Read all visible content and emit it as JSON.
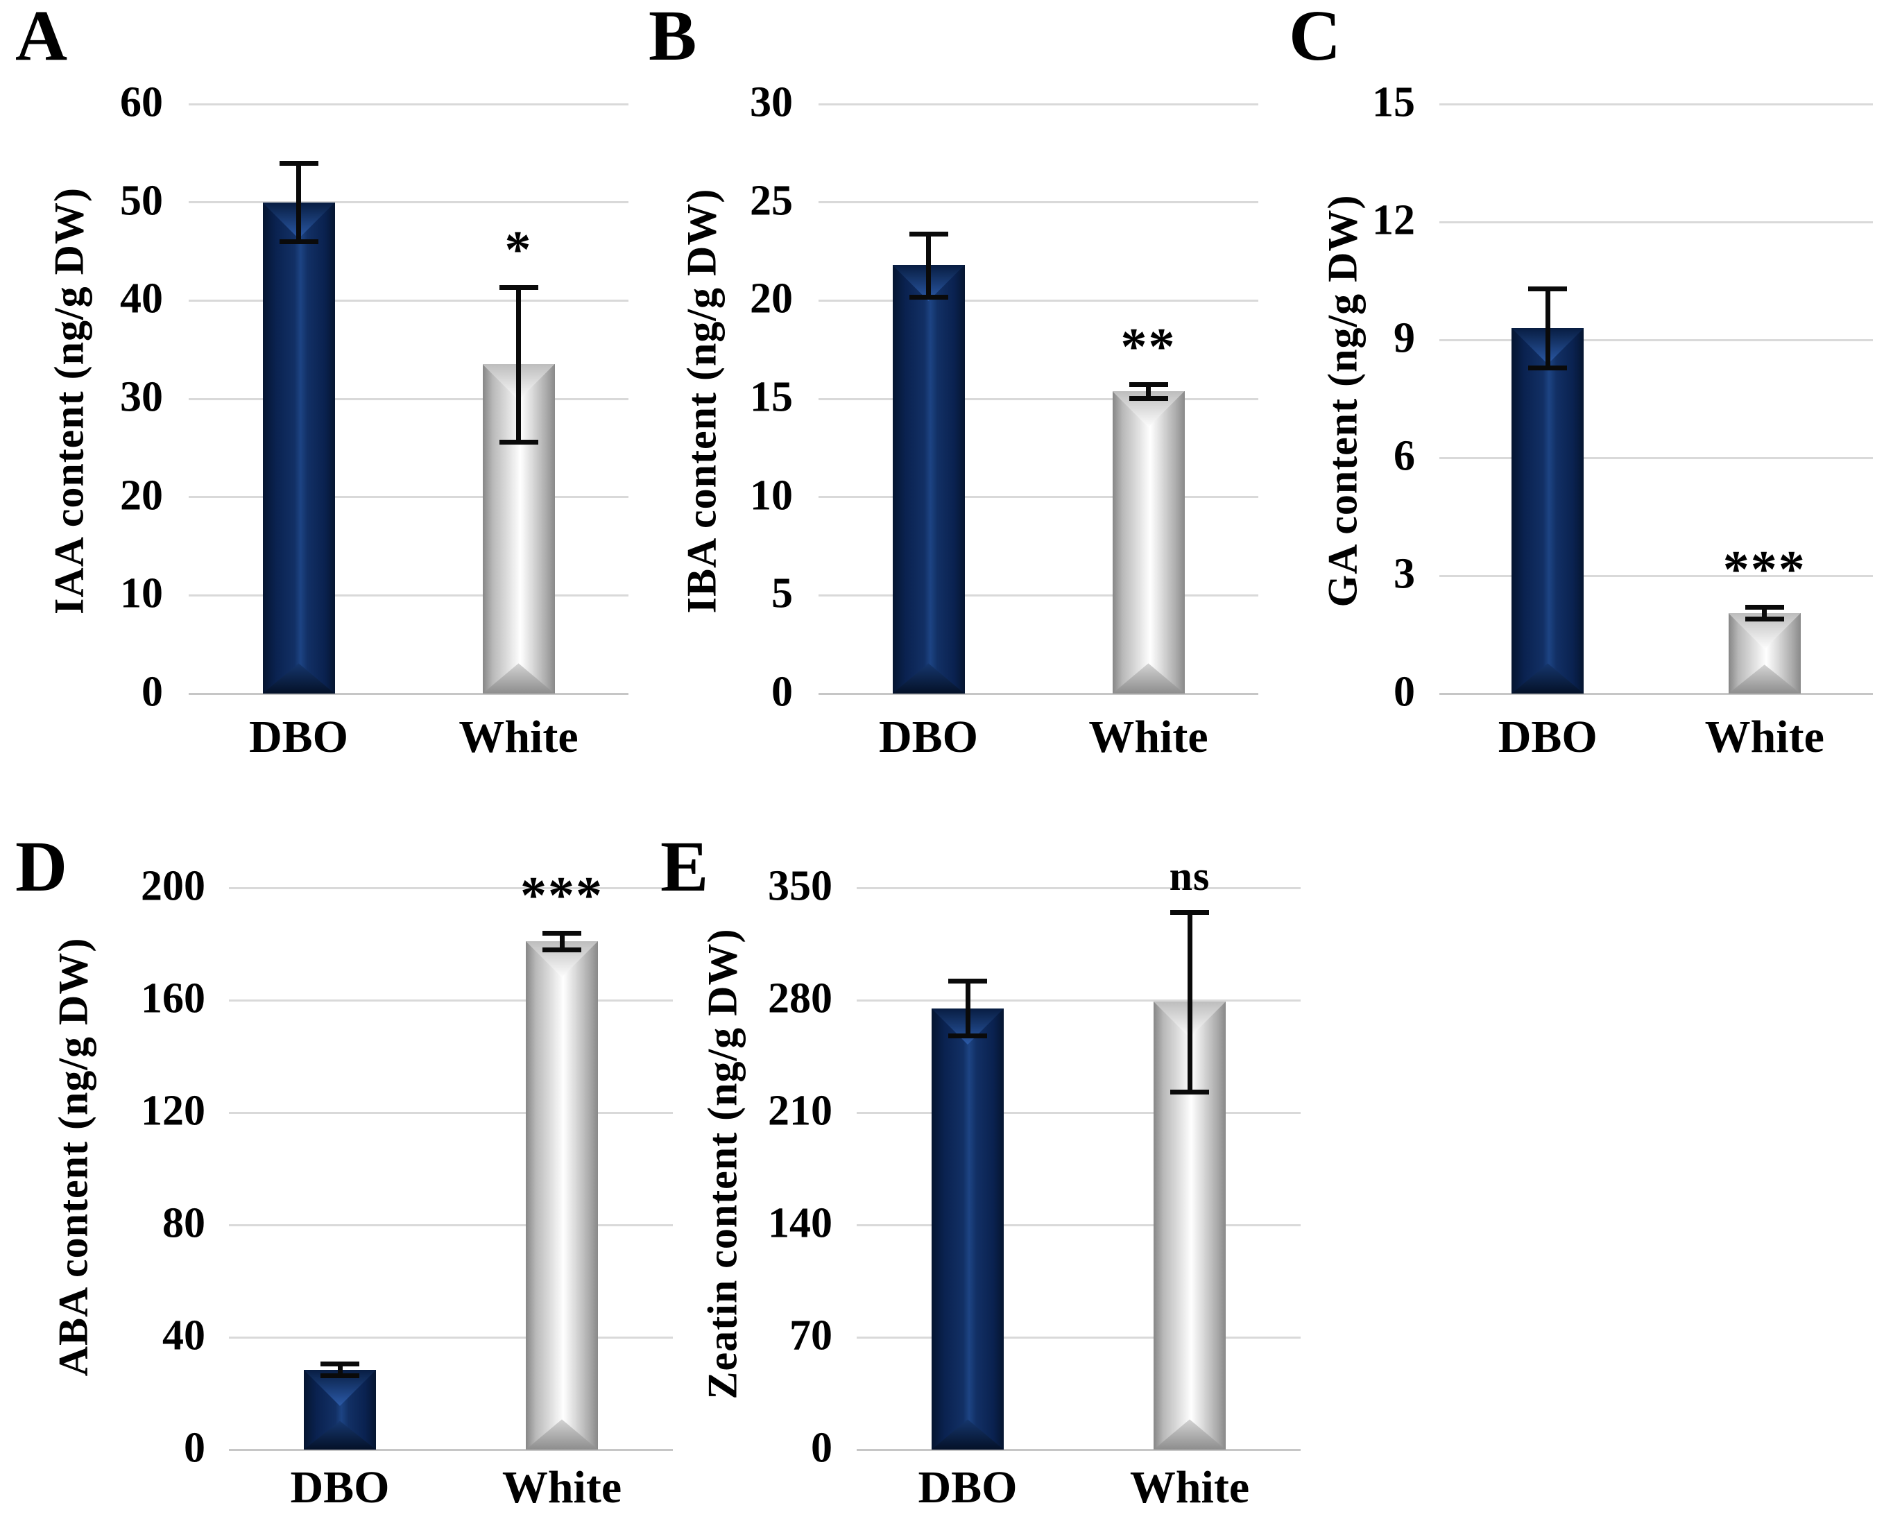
{
  "figure": {
    "kind": "five-panel bar figure",
    "group_names": [
      "DBO",
      "White"
    ],
    "colors": {
      "dbo_bar": "#0e2a5c",
      "white_bar": "#d9d9d9",
      "error_bar": "#0a0a0a",
      "gridline": "#d9d9d9",
      "text": "#000000",
      "background": "#ffffff"
    }
  },
  "chart_data": [
    {
      "panel": "A",
      "type": "bar",
      "title": "",
      "ylabel": "IAA content (ng/g DW)",
      "xlabel": "",
      "categories": [
        "DBO",
        "White"
      ],
      "values": [
        50,
        33.5
      ],
      "errors": [
        4,
        7.9
      ],
      "significance": [
        null,
        "*"
      ],
      "ylim": [
        0,
        60
      ],
      "ytick_step": 10,
      "yticks": [
        "0",
        "10",
        "20",
        "30",
        "40",
        "50",
        "60"
      ],
      "grid": "horizontal",
      "legend": "none"
    },
    {
      "panel": "B",
      "type": "bar",
      "title": "",
      "ylabel": "IBA content (ng/g DW)",
      "xlabel": "",
      "categories": [
        "DBO",
        "White"
      ],
      "values": [
        21.8,
        15.4
      ],
      "errors": [
        1.6,
        0.35
      ],
      "significance": [
        null,
        "**"
      ],
      "ylim": [
        0,
        30
      ],
      "ytick_step": 5,
      "yticks": [
        "0",
        "5",
        "10",
        "15",
        "20",
        "25",
        "30"
      ],
      "grid": "horizontal",
      "legend": "none"
    },
    {
      "panel": "C",
      "type": "bar",
      "title": "",
      "ylabel": "GA content (ng/g DW)",
      "xlabel": "",
      "categories": [
        "DBO",
        "White"
      ],
      "values": [
        9.3,
        2.05
      ],
      "errors": [
        1.0,
        0.15
      ],
      "significance": [
        null,
        "***"
      ],
      "ylim": [
        0,
        15
      ],
      "ytick_step": 3,
      "yticks": [
        "0",
        "3",
        "6",
        "9",
        "12",
        "15"
      ],
      "grid": "horizontal",
      "legend": "none"
    },
    {
      "panel": "D",
      "type": "bar",
      "title": "",
      "ylabel": "ABA content (ng/g DW)",
      "xlabel": "",
      "categories": [
        "DBO",
        "White"
      ],
      "values": [
        28.5,
        181
      ],
      "errors": [
        2,
        3
      ],
      "significance": [
        null,
        "***"
      ],
      "ylim": [
        0,
        200
      ],
      "ytick_step": 40,
      "yticks": [
        "0",
        "40",
        "80",
        "120",
        "160",
        "200"
      ],
      "grid": "horizontal",
      "legend": "none"
    },
    {
      "panel": "E",
      "type": "bar",
      "title": "",
      "ylabel": "Zeatin content (ng/g DW)",
      "xlabel": "",
      "categories": [
        "DBO",
        "White"
      ],
      "values": [
        275,
        279
      ],
      "errors": [
        17,
        56
      ],
      "significance": [
        null,
        "ns"
      ],
      "ylim": [
        0,
        350
      ],
      "ytick_step": 70,
      "yticks": [
        "0",
        "70",
        "140",
        "210",
        "280",
        "350"
      ],
      "grid": "horizontal",
      "legend": "none"
    }
  ]
}
